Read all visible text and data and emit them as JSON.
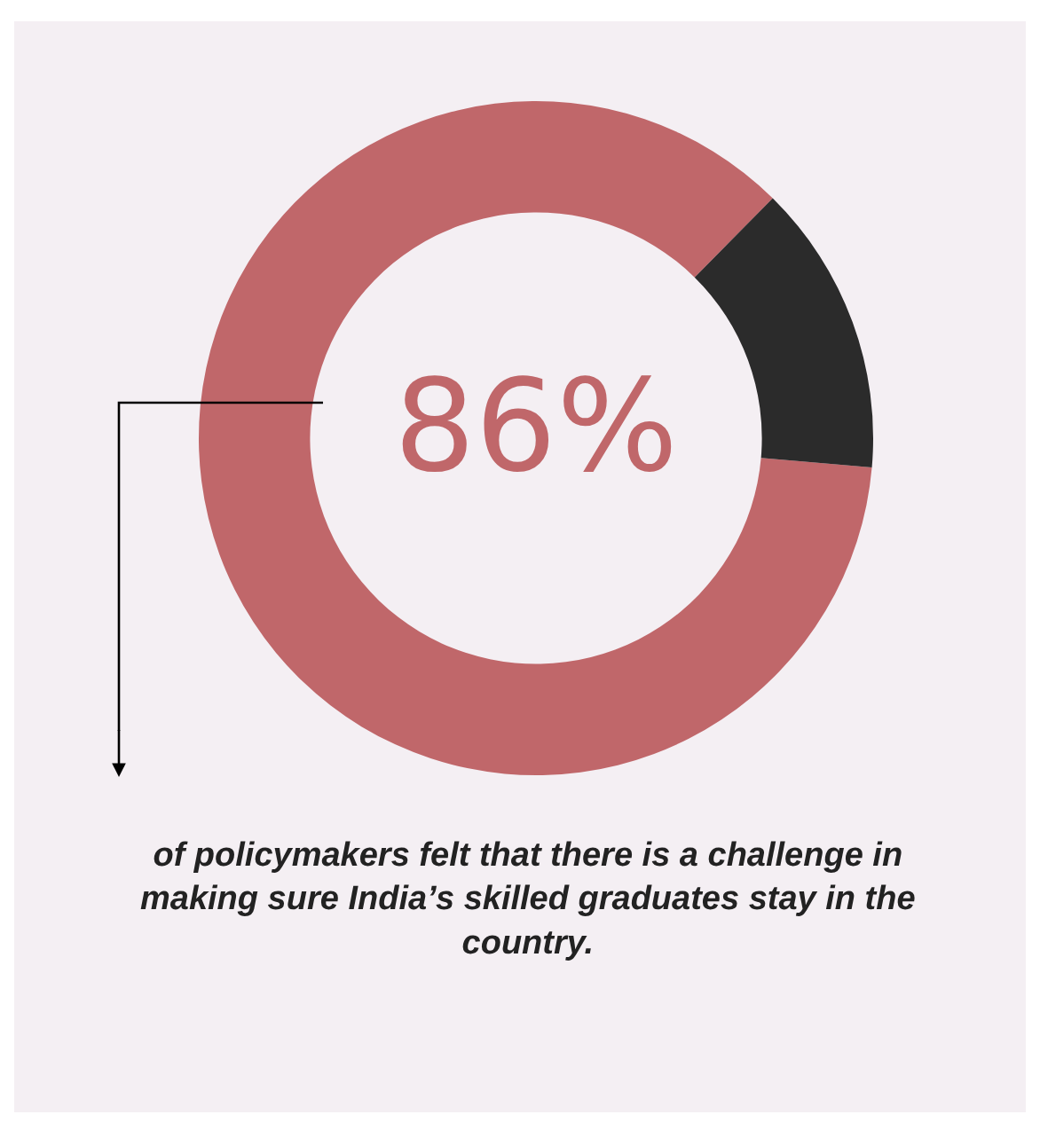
{
  "chart_data": {
    "type": "donut",
    "categories": [
      null,
      null
    ],
    "values": [
      86,
      14
    ],
    "colors": [
      "#c0676a",
      "#2b2b2b"
    ],
    "value_labels": [
      "86%",
      null
    ],
    "annotations": [
      "of policymakers felt that there is a challenge in making sure India’s skilled graduates stay in the country."
    ],
    "legend": false
  }
}
